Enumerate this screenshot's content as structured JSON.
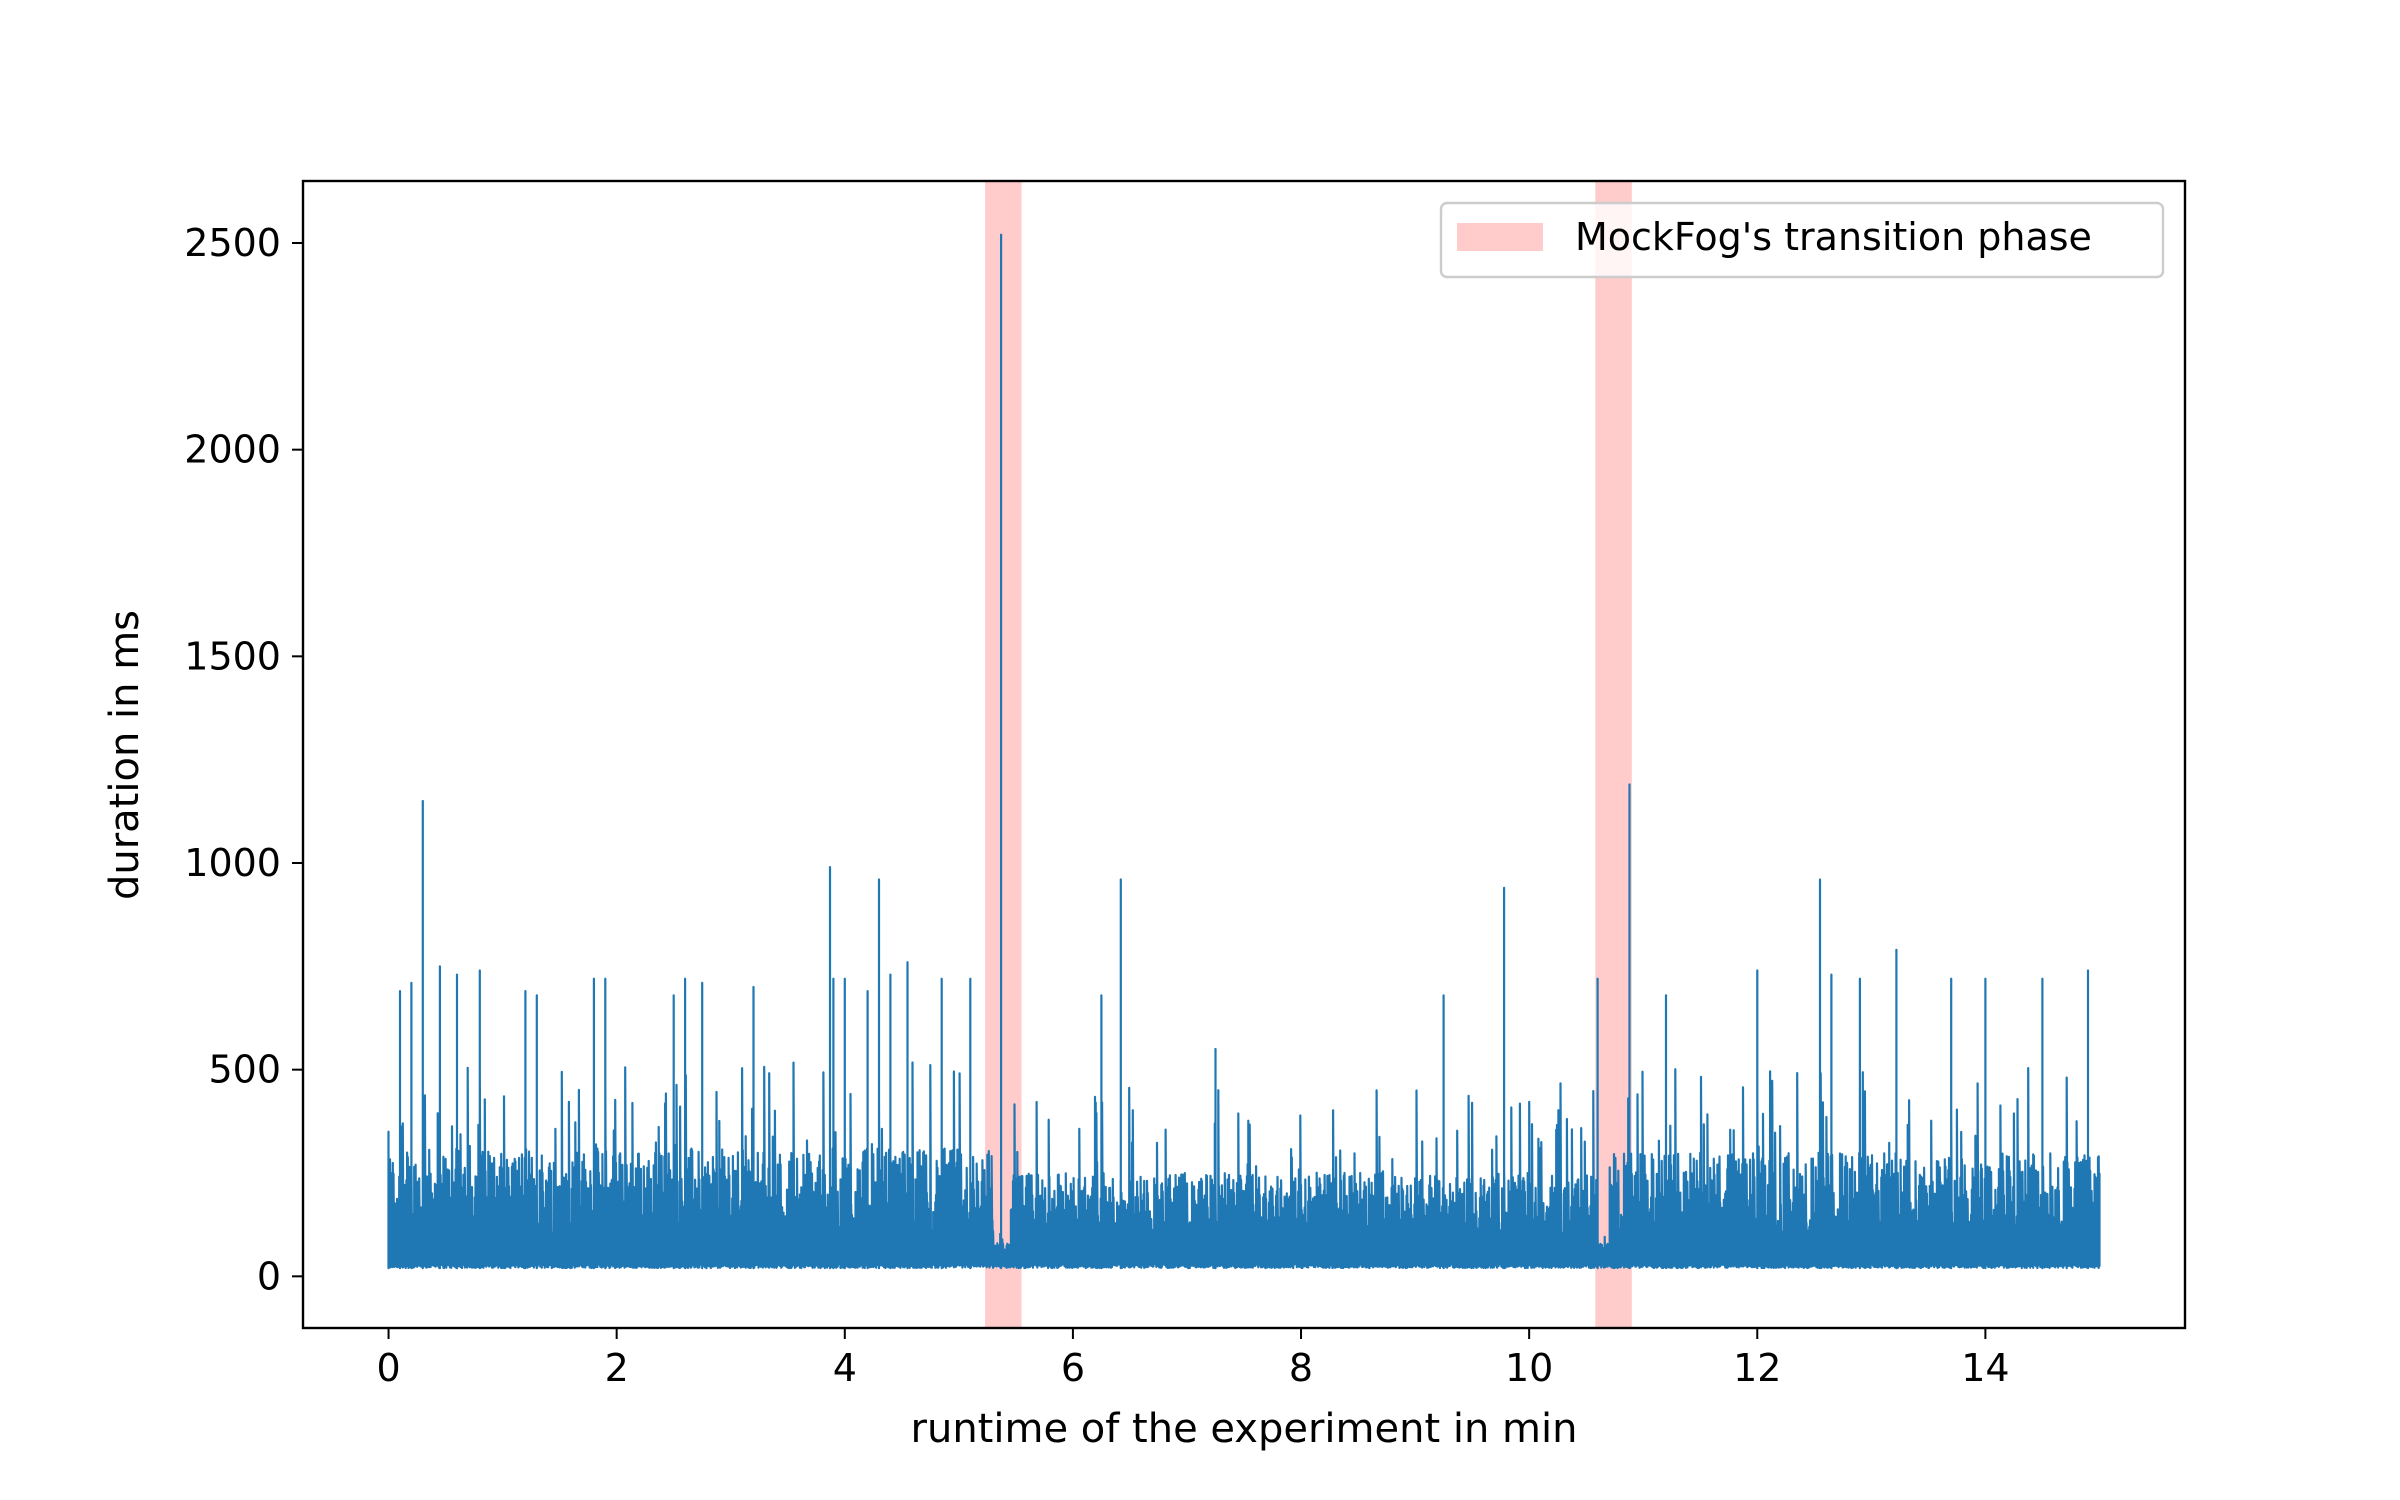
{
  "chart_data": {
    "type": "line",
    "title": "",
    "xlabel": "runtime of the experiment in min",
    "ylabel": "duration in ms",
    "xlim": [
      -0.75,
      15.75
    ],
    "ylim": [
      -125,
      2650
    ],
    "xticks": [
      0,
      2,
      4,
      6,
      8,
      10,
      12,
      14
    ],
    "xtick_labels": [
      "0",
      "2",
      "4",
      "6",
      "8",
      "10",
      "12",
      "14"
    ],
    "yticks": [
      0,
      500,
      1000,
      1500,
      2000,
      2500
    ],
    "ytick_labels": [
      "0",
      "500",
      "1000",
      "1500",
      "2000",
      "2500"
    ],
    "grid": false,
    "legend": {
      "position": "top-right",
      "entries": [
        {
          "label": "MockFog's transition phase",
          "color": "#ffcccb"
        }
      ]
    },
    "transition_phases": [
      {
        "start": 5.23,
        "end": 5.55
      },
      {
        "start": 10.58,
        "end": 10.9
      }
    ],
    "series": [
      {
        "name": "duration",
        "color": "#1f77b4",
        "baseline": 20,
        "segments": [
          {
            "start": 0.0,
            "end": 5.3,
            "band_top": 310,
            "spike_top": 520
          },
          {
            "start": 5.3,
            "end": 5.45,
            "band_top": 60,
            "spike_top": 120
          },
          {
            "start": 5.45,
            "end": 10.6,
            "band_top": 250,
            "spike_top": 470
          },
          {
            "start": 10.6,
            "end": 10.7,
            "band_top": 60,
            "spike_top": 120
          },
          {
            "start": 10.7,
            "end": 15.0,
            "band_top": 300,
            "spike_top": 510
          }
        ],
        "peaks": [
          {
            "x": 0.0,
            "y": 350
          },
          {
            "x": 0.1,
            "y": 690
          },
          {
            "x": 0.2,
            "y": 710
          },
          {
            "x": 0.3,
            "y": 1150
          },
          {
            "x": 0.45,
            "y": 750
          },
          {
            "x": 0.6,
            "y": 730
          },
          {
            "x": 0.8,
            "y": 740
          },
          {
            "x": 1.2,
            "y": 690
          },
          {
            "x": 1.3,
            "y": 680
          },
          {
            "x": 1.8,
            "y": 720
          },
          {
            "x": 1.9,
            "y": 720
          },
          {
            "x": 2.5,
            "y": 680
          },
          {
            "x": 2.6,
            "y": 720
          },
          {
            "x": 2.75,
            "y": 710
          },
          {
            "x": 3.2,
            "y": 700
          },
          {
            "x": 3.87,
            "y": 990
          },
          {
            "x": 3.9,
            "y": 720
          },
          {
            "x": 4.0,
            "y": 720
          },
          {
            "x": 4.2,
            "y": 690
          },
          {
            "x": 4.3,
            "y": 960
          },
          {
            "x": 4.4,
            "y": 730
          },
          {
            "x": 4.55,
            "y": 760
          },
          {
            "x": 4.85,
            "y": 720
          },
          {
            "x": 5.1,
            "y": 720
          },
          {
            "x": 5.37,
            "y": 2520
          },
          {
            "x": 6.25,
            "y": 680
          },
          {
            "x": 6.42,
            "y": 960
          },
          {
            "x": 7.25,
            "y": 550
          },
          {
            "x": 9.25,
            "y": 680
          },
          {
            "x": 9.78,
            "y": 940
          },
          {
            "x": 10.6,
            "y": 720
          },
          {
            "x": 10.88,
            "y": 1190
          },
          {
            "x": 11.2,
            "y": 680
          },
          {
            "x": 12.0,
            "y": 740
          },
          {
            "x": 12.55,
            "y": 960
          },
          {
            "x": 12.65,
            "y": 730
          },
          {
            "x": 12.9,
            "y": 720
          },
          {
            "x": 13.22,
            "y": 790
          },
          {
            "x": 13.7,
            "y": 720
          },
          {
            "x": 14.0,
            "y": 720
          },
          {
            "x": 14.5,
            "y": 720
          },
          {
            "x": 14.9,
            "y": 740
          }
        ]
      }
    ]
  }
}
